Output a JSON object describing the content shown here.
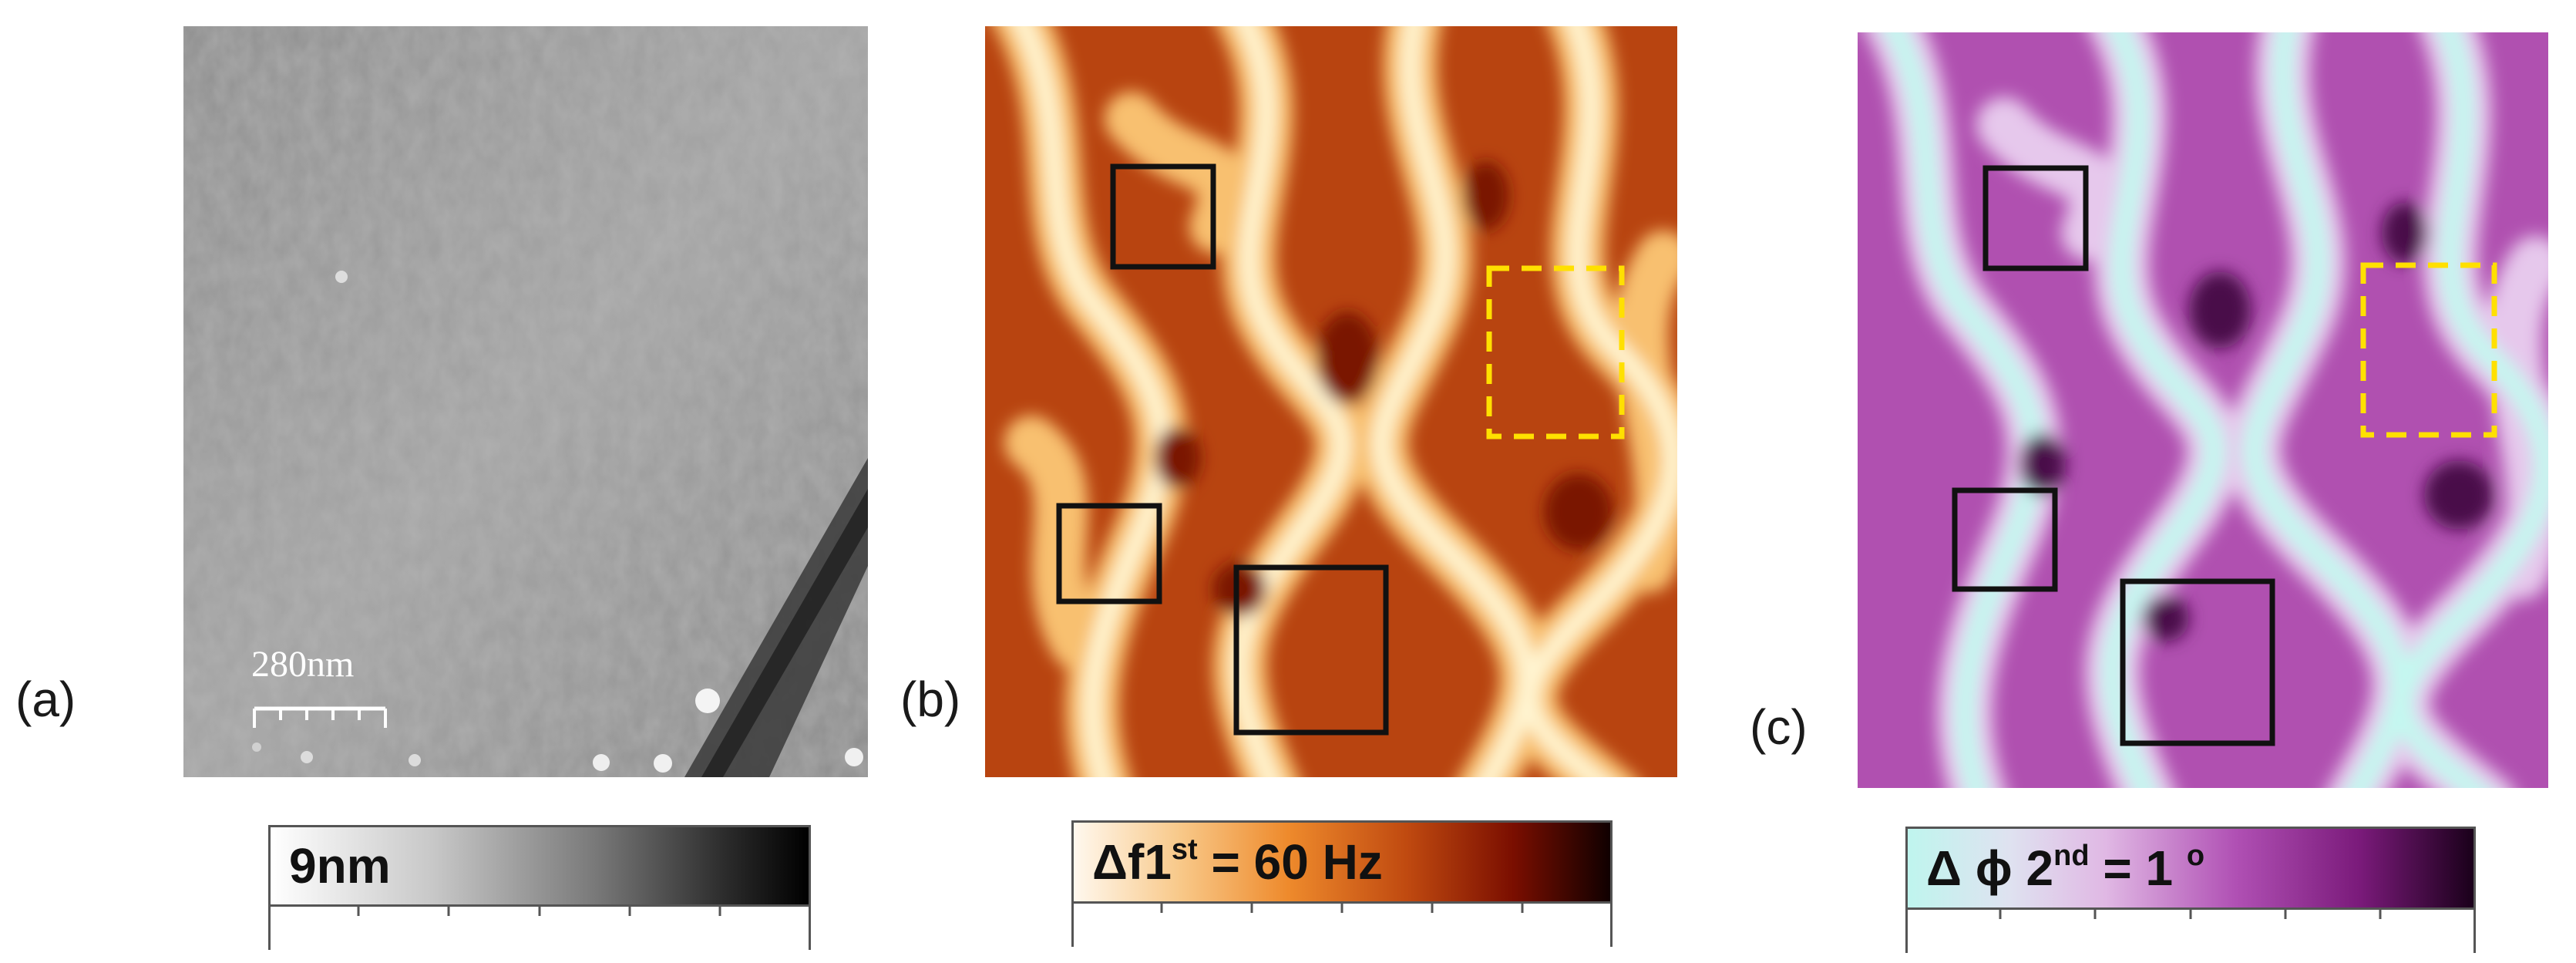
{
  "panels": [
    {
      "label": "(a)",
      "scalebar": "280nm",
      "colorbar": {
        "text": "9nm",
        "gradient": [
          "#ffffff",
          "#9a9a9a",
          "#000000"
        ]
      }
    },
    {
      "label": "(b)",
      "colorbar": {
        "text_main": "Δf1",
        "text_sup": "st",
        "text_tail": " = 60 Hz",
        "gradient": [
          "#fff5e6",
          "#f0a048",
          "#c05010",
          "#7a0e00",
          "#140000"
        ]
      }
    },
    {
      "label": "(c)",
      "colorbar": {
        "text_main": "Δ ϕ 2",
        "text_sup": "nd",
        "text_tail": " = 1 ",
        "text_sup2": "o",
        "gradient": [
          "#bff5ee",
          "#e8d0ee",
          "#b050b4",
          "#7a1a7a",
          "#1a001a"
        ]
      }
    }
  ],
  "colors": {
    "afm_b_light": "#fff0c8",
    "afm_b_mid": "#e07a20",
    "afm_b_dark": "#8a1800",
    "afm_c_light": "#c9f7ef",
    "afm_c_mid": "#c55cc2",
    "afm_c_dark": "#4a0a4a",
    "box_solid": "#111111",
    "box_dashed": "#ffe000"
  }
}
